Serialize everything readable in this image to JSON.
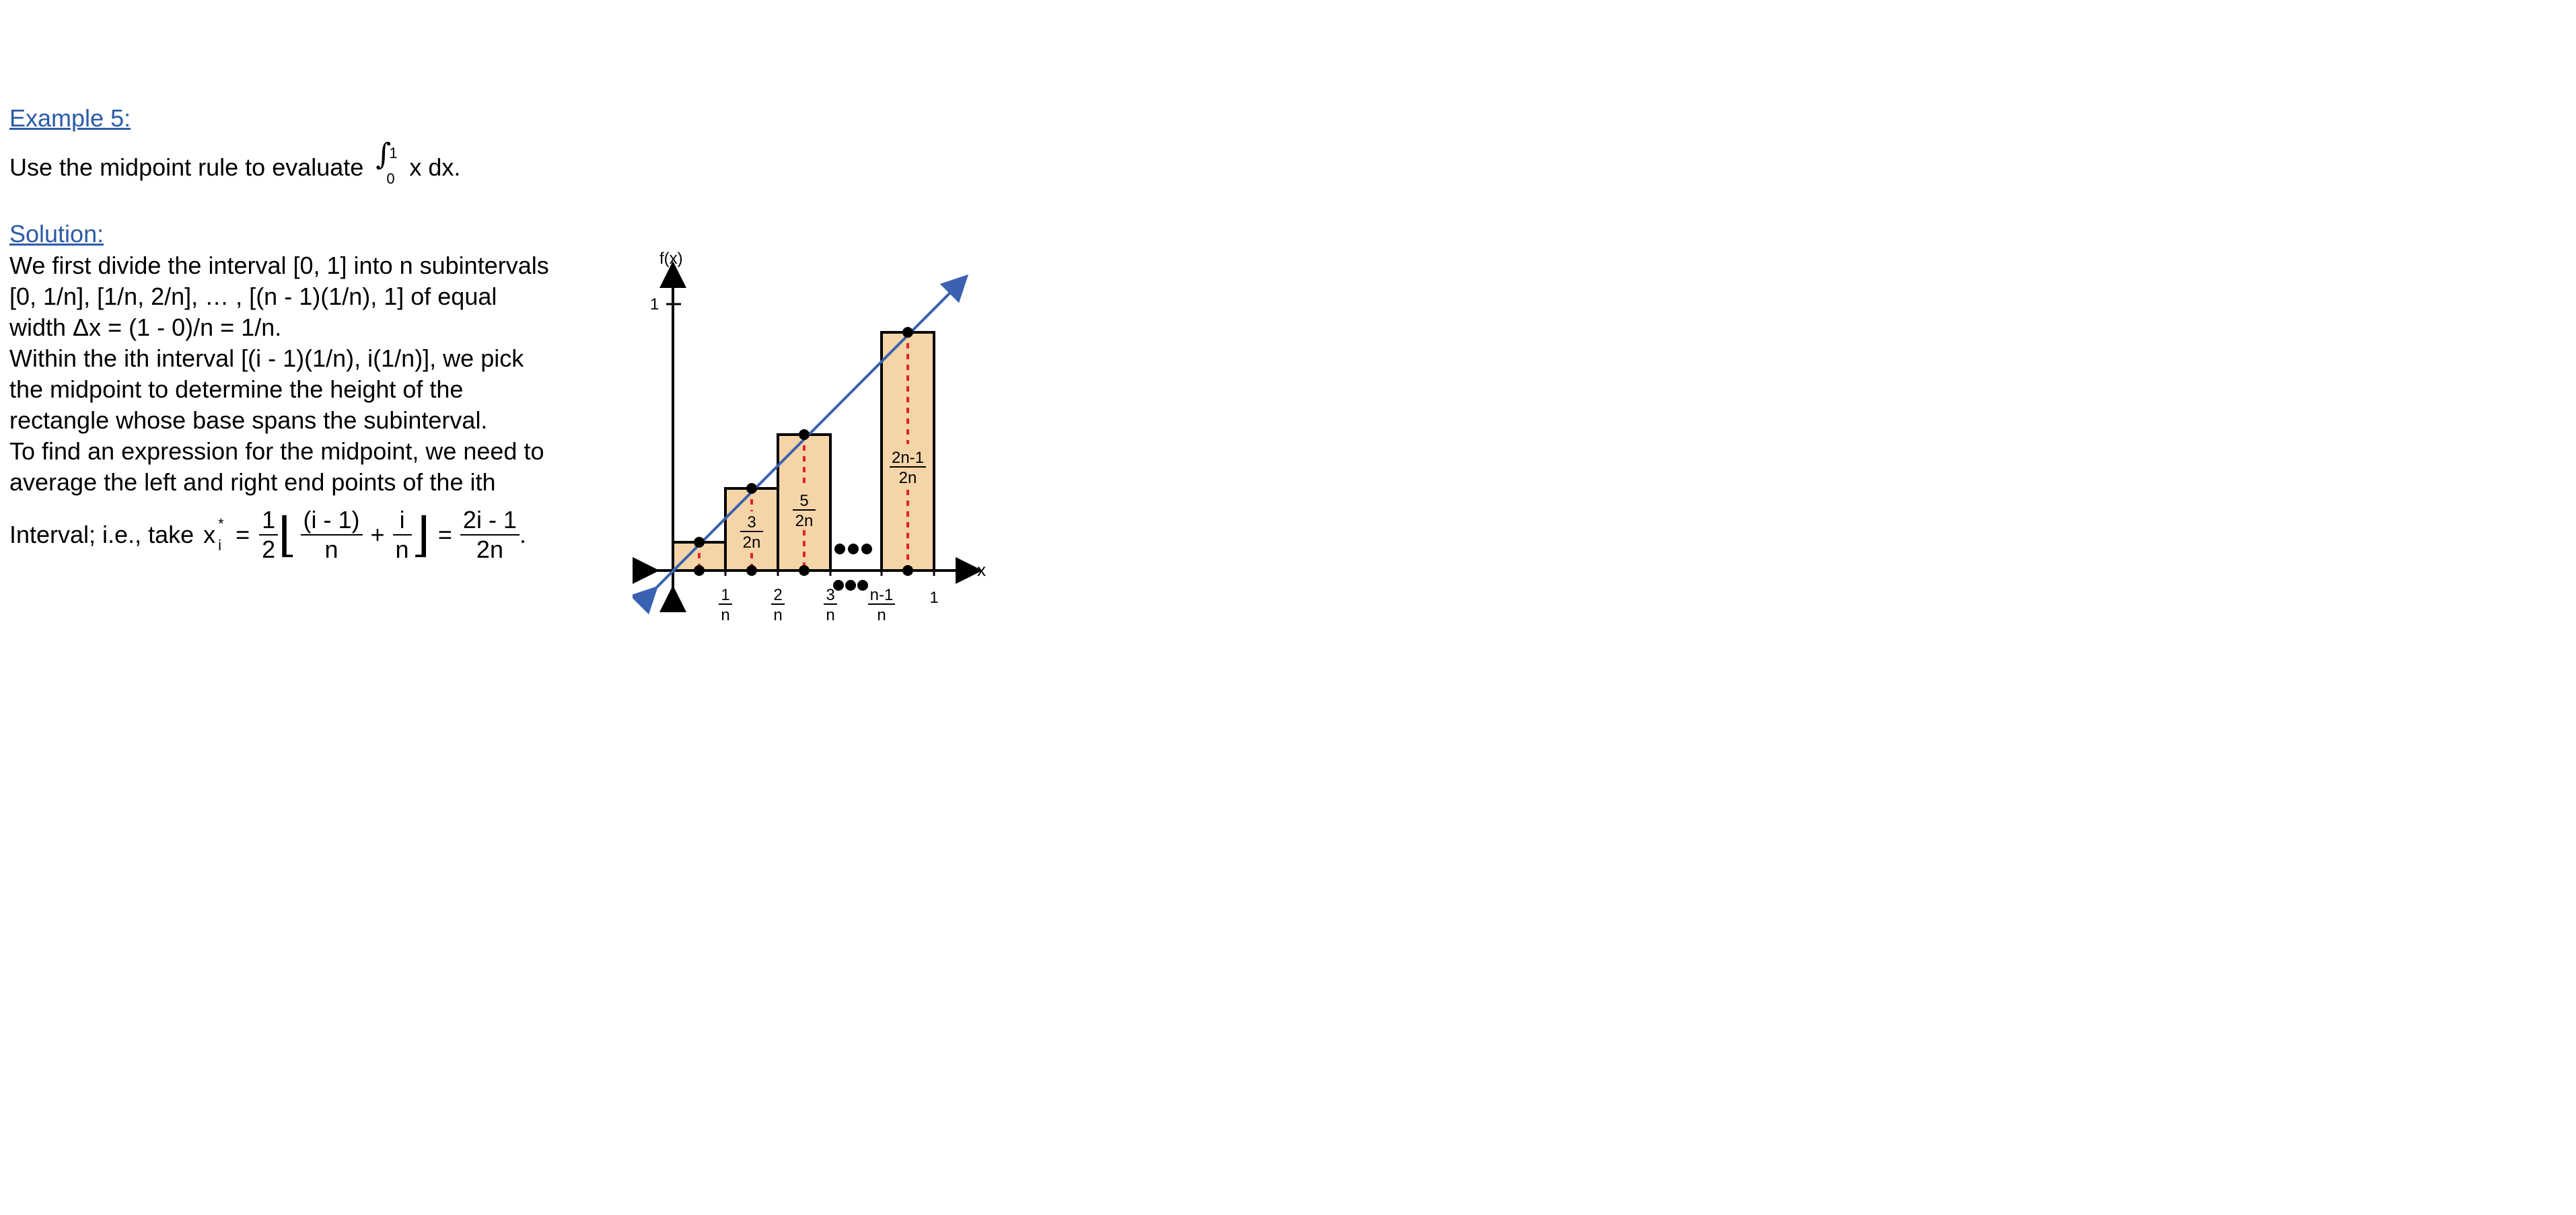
{
  "example": {
    "heading": "Example 5:",
    "prompt_prefix": "Use the midpoint rule to evaluate",
    "integral_upper": "1",
    "integral_lower": "0",
    "integrand": "x dx."
  },
  "solution": {
    "heading": "Solution:",
    "lines": [
      "We first divide the interval [0, 1] into n subintervals",
      "[0, 1/n], [1/n, 2/n], … , [(n - 1)(1/n), 1] of equal",
      "width Δx = (1 - 0)/n = 1/n.",
      "Within the ith interval [(i - 1)(1/n), i(1/n)], we pick",
      "the midpoint to determine the height of the",
      "rectangle whose base spans the subinterval.",
      "To find an expression for the midpoint, we need to",
      "average the left and right end points of the ith"
    ],
    "formula": {
      "prefix": "Interval; i.e., take",
      "var": "x",
      "sub": "i",
      "sup": "*",
      "eq": "=",
      "half_num": "1",
      "half_den": "2",
      "t1_num": "(i - 1)",
      "t1_den": "n",
      "plus": "+",
      "t2_num": "i",
      "t2_den": "n",
      "eq2": "=",
      "res_num": "2i - 1",
      "res_den": "2n",
      "period": "."
    }
  },
  "graph": {
    "y_axis_label": "f(x)",
    "x_axis_label": "x",
    "y_tick": "1",
    "x_tick_labels": [
      {
        "num": "1",
        "den": "n"
      },
      {
        "num": "2",
        "den": "n"
      },
      {
        "num": "3",
        "den": "n"
      },
      {
        "num": "n-1",
        "den": "n"
      }
    ],
    "x_tick_one": "1",
    "rect_labels": [
      {
        "num": "3",
        "den": "2n"
      },
      {
        "num": "5",
        "den": "2n"
      },
      {
        "num": "2n-1",
        "den": "2n"
      }
    ],
    "colors": {
      "rect_fill": "#f5d5a8",
      "line": "#3a62b0",
      "midline": "#e0222a",
      "heading": "#2b5ba8"
    }
  }
}
